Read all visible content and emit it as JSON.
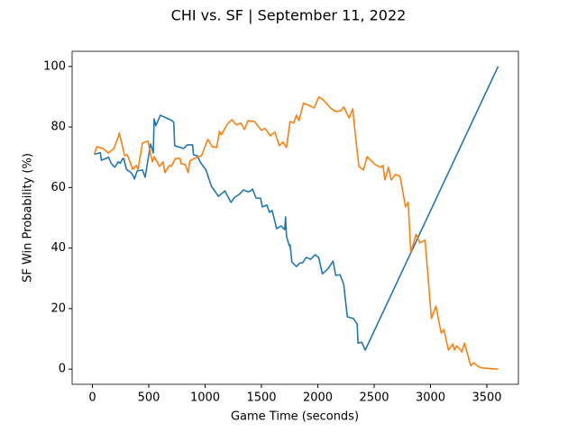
{
  "chart_data": {
    "type": "line",
    "title": "CHI vs. SF | September 11, 2022",
    "xlabel": "Game Time (seconds)",
    "ylabel": "SF Win Probability (%)",
    "xlim": [
      -180,
      3780
    ],
    "xticks": [
      0,
      500,
      1000,
      1500,
      2000,
      2500,
      3000,
      3500
    ],
    "ylim": [
      -5,
      105
    ],
    "yticks": [
      0,
      20,
      40,
      60,
      80,
      100
    ],
    "grid": false,
    "series": [
      {
        "color": "#1f77b4",
        "x": [
          16,
          71,
          79,
          143,
          167,
          198,
          230,
          246,
          270,
          278,
          302,
          341,
          365,
          373,
          397,
          444,
          468,
          516,
          540,
          548,
          563,
          603,
          706,
          722,
          730,
          810,
          841,
          889,
          897,
          929,
          960,
          1008,
          1056,
          1119,
          1175,
          1230,
          1262,
          1302,
          1341,
          1381,
          1405,
          1421,
          1452,
          1492,
          1508,
          1548,
          1571,
          1595,
          1635,
          1675,
          1706,
          1714,
          1722,
          1746,
          1754,
          1770,
          1810,
          1841,
          1865,
          1897,
          1937,
          1976,
          2008,
          2040,
          2087,
          2135,
          2159,
          2198,
          2230,
          2262,
          2317,
          2349,
          2357,
          2389,
          2421,
          3600
        ],
        "values": [
          71,
          71.5,
          69,
          70,
          68,
          66.7,
          68.5,
          68,
          69.6,
          69.6,
          66,
          65,
          63.7,
          62.8,
          65.5,
          65.8,
          63.4,
          74.4,
          71.4,
          82.7,
          80.4,
          83.9,
          82.1,
          81.5,
          73.8,
          72.9,
          74.1,
          74.1,
          70.8,
          70.5,
          68.2,
          65.8,
          60.4,
          57.1,
          58.9,
          55.1,
          56.8,
          57.7,
          59.2,
          58.6,
          58.9,
          59.5,
          56.5,
          56.5,
          53.6,
          54.2,
          51.8,
          52.4,
          46.4,
          47.3,
          46.1,
          50.3,
          44,
          40.8,
          41.1,
          35.4,
          33.9,
          35.1,
          35.1,
          36.9,
          36.3,
          37.8,
          36.9,
          31.5,
          33,
          35.7,
          31,
          31.2,
          28,
          17.3,
          16.7,
          14.9,
          8.6,
          8.9,
          6.3,
          100
        ]
      },
      {
        "color": "#ff7f0e",
        "x": [
          16,
          40,
          95,
          143,
          190,
          230,
          238,
          286,
          310,
          357,
          389,
          405,
          444,
          492,
          532,
          548,
          595,
          627,
          643,
          683,
          698,
          738,
          778,
          786,
          825,
          849,
          865,
          921,
          968,
          1024,
          1063,
          1103,
          1127,
          1143,
          1198,
          1238,
          1278,
          1317,
          1349,
          1381,
          1437,
          1500,
          1532,
          1579,
          1619,
          1659,
          1690,
          1722,
          1754,
          1786,
          1810,
          1833,
          1873,
          1937,
          1968,
          2008,
          2048,
          2111,
          2159,
          2206,
          2230,
          2278,
          2310,
          2333,
          2365,
          2405,
          2437,
          2508,
          2556,
          2579,
          2595,
          2627,
          2651,
          2690,
          2730,
          2778,
          2802,
          2825,
          2873,
          2905,
          2952,
          3008,
          3048,
          3095,
          3119,
          3159,
          3198,
          3214,
          3230,
          3262,
          3278,
          3302,
          3341,
          3357,
          3381,
          3437,
          3484,
          3600
        ],
        "values": [
          71,
          73.5,
          72.9,
          71.4,
          72.9,
          76.8,
          78,
          70.5,
          70.8,
          66,
          67.3,
          66,
          74.7,
          75.3,
          68.5,
          70.2,
          67,
          68.5,
          64.9,
          67.3,
          67,
          69.6,
          69.6,
          67.9,
          67.6,
          64.9,
          68.8,
          69.9,
          70.5,
          75.9,
          73.5,
          73.2,
          78.6,
          77.4,
          81,
          82.4,
          80.7,
          81.3,
          79.2,
          82.1,
          81.8,
          78.9,
          79.5,
          77.1,
          78.3,
          73.8,
          75,
          73.2,
          81.8,
          81.3,
          83.9,
          82.1,
          87.8,
          86.9,
          86.3,
          89.9,
          89,
          86.3,
          85.1,
          85.4,
          86.6,
          83,
          86,
          77.4,
          67,
          65.8,
          70.2,
          67.6,
          66.7,
          67.3,
          62.5,
          66.7,
          62.5,
          64.3,
          63.7,
          53.6,
          55.1,
          38.7,
          44.6,
          41.7,
          42.6,
          16.7,
          20.8,
          11.9,
          13.1,
          6.3,
          8.3,
          6.3,
          7.7,
          6.5,
          5.7,
          8.6,
          3.3,
          1.2,
          2.1,
          0.6,
          0.3,
          0
        ]
      }
    ]
  }
}
